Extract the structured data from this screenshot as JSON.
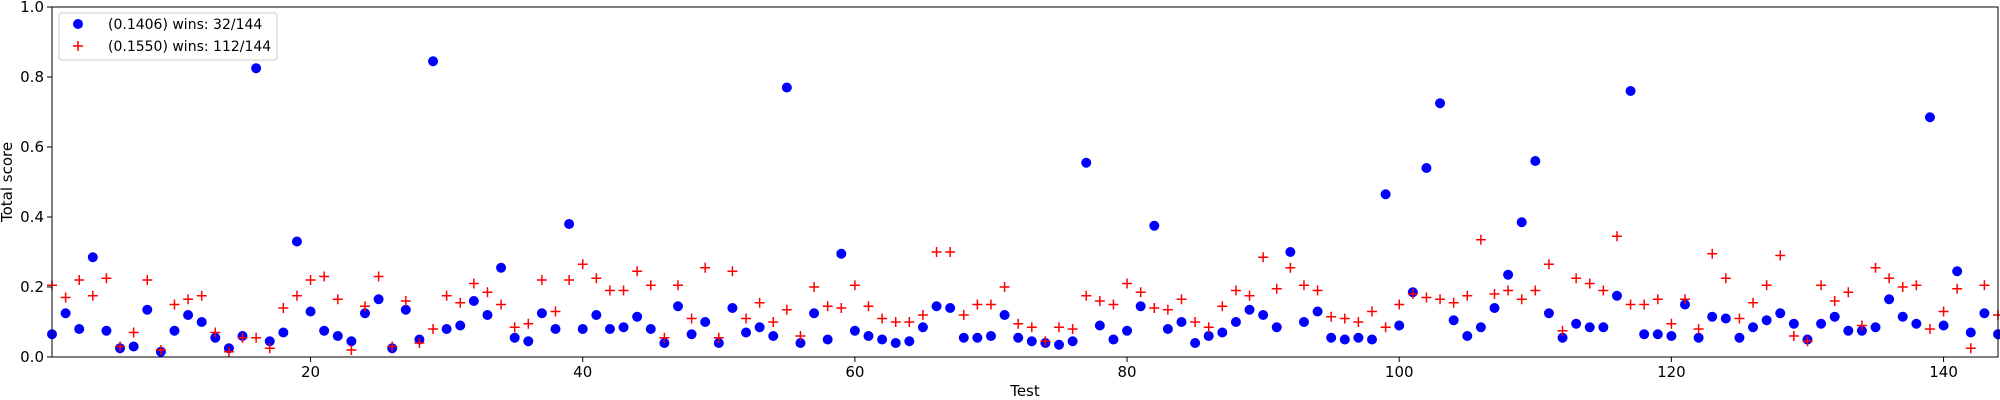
{
  "chart_data": {
    "type": "scatter",
    "xlabel": "Test",
    "ylabel": "Total score",
    "xlim": [
      1,
      144
    ],
    "ylim": [
      0,
      1.0
    ],
    "xticks": [
      20,
      40,
      60,
      80,
      100,
      120,
      140
    ],
    "yticks": [
      0.0,
      0.2,
      0.4,
      0.6,
      0.8,
      1.0
    ],
    "xtick_labels": [
      "20",
      "40",
      "60",
      "80",
      "100",
      "120",
      "140"
    ],
    "ytick_labels": [
      "0.0",
      "0.2",
      "0.4",
      "0.6",
      "0.8",
      "1.0"
    ],
    "grid": false,
    "legend_position": "top-left",
    "series": [
      {
        "name": "(0.1406) wins: 32/144",
        "marker": "circle",
        "color": "#0000ff",
        "x": [
          1,
          2,
          3,
          4,
          5,
          6,
          7,
          8,
          9,
          10,
          11,
          12,
          13,
          14,
          15,
          16,
          17,
          18,
          19,
          20,
          21,
          22,
          23,
          24,
          25,
          26,
          27,
          28,
          29,
          30,
          31,
          32,
          33,
          34,
          35,
          36,
          37,
          38,
          39,
          40,
          41,
          42,
          43,
          44,
          45,
          46,
          47,
          48,
          49,
          50,
          51,
          52,
          53,
          54,
          55,
          56,
          57,
          58,
          59,
          60,
          61,
          62,
          63,
          64,
          65,
          66,
          67,
          68,
          69,
          70,
          71,
          72,
          73,
          74,
          75,
          76,
          77,
          78,
          79,
          80,
          81,
          82,
          83,
          84,
          85,
          86,
          87,
          88,
          89,
          90,
          91,
          92,
          93,
          94,
          95,
          96,
          97,
          98,
          99,
          100,
          101,
          102,
          103,
          104,
          105,
          106,
          107,
          108,
          109,
          110,
          111,
          112,
          113,
          114,
          115,
          116,
          117,
          118,
          119,
          120,
          121,
          122,
          123,
          124,
          125,
          126,
          127,
          128,
          129,
          130,
          131,
          132,
          133,
          134,
          135,
          136,
          137,
          138,
          139,
          140,
          141,
          142,
          143,
          144
        ],
        "y": [
          0.065,
          0.125,
          0.08,
          0.285,
          0.075,
          0.025,
          0.03,
          0.135,
          0.015,
          0.075,
          0.12,
          0.1,
          0.055,
          0.025,
          0.06,
          0.825,
          0.045,
          0.07,
          0.33,
          0.13,
          0.075,
          0.06,
          0.045,
          0.125,
          0.165,
          0.025,
          0.135,
          0.05,
          0.845,
          0.08,
          0.09,
          0.16,
          0.12,
          0.255,
          0.055,
          0.045,
          0.125,
          0.08,
          0.38,
          0.08,
          0.12,
          0.08,
          0.085,
          0.115,
          0.08,
          0.04,
          0.145,
          0.065,
          0.1,
          0.04,
          0.14,
          0.07,
          0.085,
          0.06,
          0.77,
          0.04,
          0.125,
          0.05,
          0.295,
          0.075,
          0.06,
          0.05,
          0.04,
          0.045,
          0.085,
          0.145,
          0.14,
          0.055,
          0.055,
          0.06,
          0.12,
          0.055,
          0.045,
          0.04,
          0.035,
          0.045,
          0.555,
          0.09,
          0.05,
          0.075,
          0.145,
          0.375,
          0.08,
          0.1,
          0.04,
          0.06,
          0.07,
          0.1,
          0.135,
          0.12,
          0.085,
          0.3,
          0.1,
          0.13,
          0.055,
          0.05,
          0.055,
          0.05,
          0.465,
          0.09,
          0.185,
          0.54,
          0.725,
          0.105,
          0.06,
          0.085,
          0.14,
          0.235,
          0.385,
          0.56,
          0.125,
          0.055,
          0.095,
          0.085,
          0.085,
          0.175,
          0.76,
          0.065,
          0.065,
          0.06,
          0.15,
          0.055,
          0.115,
          0.11,
          0.055,
          0.085,
          0.105,
          0.125,
          0.095,
          0.05,
          0.095,
          0.115,
          0.075,
          0.075,
          0.085,
          0.165,
          0.115,
          0.095,
          0.685,
          0.09,
          0.245,
          0.07,
          0.125,
          0.065
        ]
      },
      {
        "name": "(0.1550) wins: 112/144",
        "marker": "plus",
        "color": "#ff0000",
        "x": [
          1,
          2,
          3,
          4,
          5,
          6,
          7,
          8,
          9,
          10,
          11,
          12,
          13,
          14,
          15,
          16,
          17,
          18,
          19,
          20,
          21,
          22,
          23,
          24,
          25,
          26,
          27,
          28,
          29,
          30,
          31,
          32,
          33,
          34,
          35,
          36,
          37,
          38,
          39,
          40,
          41,
          42,
          43,
          44,
          45,
          46,
          47,
          48,
          49,
          50,
          51,
          52,
          53,
          54,
          55,
          56,
          57,
          58,
          59,
          60,
          61,
          62,
          63,
          64,
          65,
          66,
          67,
          68,
          69,
          70,
          71,
          72,
          73,
          74,
          75,
          76,
          77,
          78,
          79,
          80,
          81,
          82,
          83,
          84,
          85,
          86,
          87,
          88,
          89,
          90,
          91,
          92,
          93,
          94,
          95,
          96,
          97,
          98,
          99,
          100,
          101,
          102,
          103,
          104,
          105,
          106,
          107,
          108,
          109,
          110,
          111,
          112,
          113,
          114,
          115,
          116,
          117,
          118,
          119,
          120,
          121,
          122,
          123,
          124,
          125,
          126,
          127,
          128,
          129,
          130,
          131,
          132,
          133,
          134,
          135,
          136,
          137,
          138,
          139,
          140,
          141,
          142,
          143,
          144
        ],
        "y": [
          0.205,
          0.17,
          0.22,
          0.175,
          0.225,
          0.03,
          0.07,
          0.22,
          0.02,
          0.15,
          0.165,
          0.175,
          0.07,
          0.015,
          0.055,
          0.055,
          0.025,
          0.14,
          0.175,
          0.22,
          0.23,
          0.165,
          0.02,
          0.145,
          0.23,
          0.03,
          0.16,
          0.04,
          0.08,
          0.175,
          0.155,
          0.21,
          0.185,
          0.15,
          0.085,
          0.095,
          0.22,
          0.13,
          0.22,
          0.265,
          0.225,
          0.19,
          0.19,
          0.245,
          0.205,
          0.055,
          0.205,
          0.11,
          0.255,
          0.055,
          0.245,
          0.11,
          0.155,
          0.1,
          0.135,
          0.06,
          0.2,
          0.145,
          0.14,
          0.205,
          0.145,
          0.11,
          0.1,
          0.1,
          0.12,
          0.3,
          0.3,
          0.12,
          0.15,
          0.15,
          0.2,
          0.095,
          0.085,
          0.045,
          0.085,
          0.08,
          0.175,
          0.16,
          0.15,
          0.21,
          0.185,
          0.14,
          0.135,
          0.165,
          0.1,
          0.085,
          0.145,
          0.19,
          0.175,
          0.285,
          0.195,
          0.255,
          0.205,
          0.19,
          0.115,
          0.11,
          0.1,
          0.13,
          0.085,
          0.15,
          0.18,
          0.17,
          0.165,
          0.155,
          0.175,
          0.335,
          0.18,
          0.19,
          0.165,
          0.19,
          0.265,
          0.075,
          0.225,
          0.21,
          0.19,
          0.345,
          0.15,
          0.15,
          0.165,
          0.095,
          0.165,
          0.08,
          0.295,
          0.225,
          0.11,
          0.155,
          0.205,
          0.29,
          0.06,
          0.045,
          0.205,
          0.16,
          0.185,
          0.09,
          0.255,
          0.225,
          0.2,
          0.205,
          0.08,
          0.13,
          0.195,
          0.025,
          0.205,
          0.12
        ]
      }
    ]
  }
}
